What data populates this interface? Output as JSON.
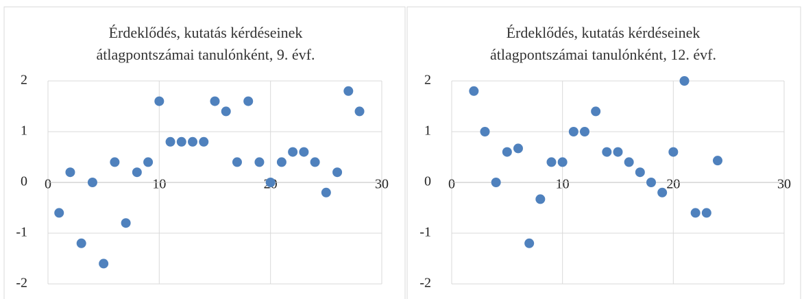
{
  "chart_data": [
    {
      "type": "scatter",
      "title": [
        "Érdeklődés, kutatás kérdéseinek",
        "átlagpontszámai tanulónként, 9. évf."
      ],
      "color": "#4f81bd",
      "grid": true,
      "xlim": [
        0,
        30
      ],
      "xticks": [
        0,
        10,
        20,
        30
      ],
      "ylim": [
        -2,
        2
      ],
      "yticks": [
        -2,
        -1,
        0,
        1,
        2
      ],
      "x": [
        1,
        2,
        3,
        4,
        5,
        6,
        7,
        8,
        9,
        10,
        11,
        12,
        13,
        14,
        15,
        16,
        17,
        18,
        19,
        20,
        21,
        22,
        23,
        24,
        25,
        26,
        27,
        28
      ],
      "values": [
        -0.6,
        0.2,
        -1.2,
        0,
        -1.6,
        0.4,
        -0.8,
        0.2,
        0.4,
        1.6,
        0.8,
        0.8,
        0.8,
        0.8,
        1.6,
        1.4,
        0.4,
        1.6,
        0.4,
        0,
        0.4,
        0.6,
        0.6,
        0.4,
        -0.2,
        0.2,
        1.8,
        1.4
      ]
    },
    {
      "type": "scatter",
      "title": [
        "Érdeklődés, kutatás kérdéseinek",
        "átlagpontszámai tanulónként, 12. évf."
      ],
      "color": "#4f81bd",
      "grid": true,
      "xlim": [
        0,
        30
      ],
      "xticks": [
        0,
        10,
        20,
        30
      ],
      "ylim": [
        -2,
        2
      ],
      "yticks": [
        -2,
        -1,
        0,
        1,
        2
      ],
      "x": [
        2,
        3,
        4,
        5,
        6,
        7,
        8,
        9,
        10,
        11,
        12,
        13,
        14,
        15,
        16,
        17,
        18,
        19,
        20,
        21,
        22,
        23,
        24
      ],
      "values": [
        1.8,
        1,
        0,
        0.6,
        0.67,
        -1.2,
        -0.33,
        0.4,
        0.4,
        1,
        1,
        1.4,
        0.6,
        0.6,
        0.4,
        0.2,
        0,
        -0.2,
        0.6,
        2,
        -0.6,
        -0.6,
        0.43
      ]
    }
  ]
}
